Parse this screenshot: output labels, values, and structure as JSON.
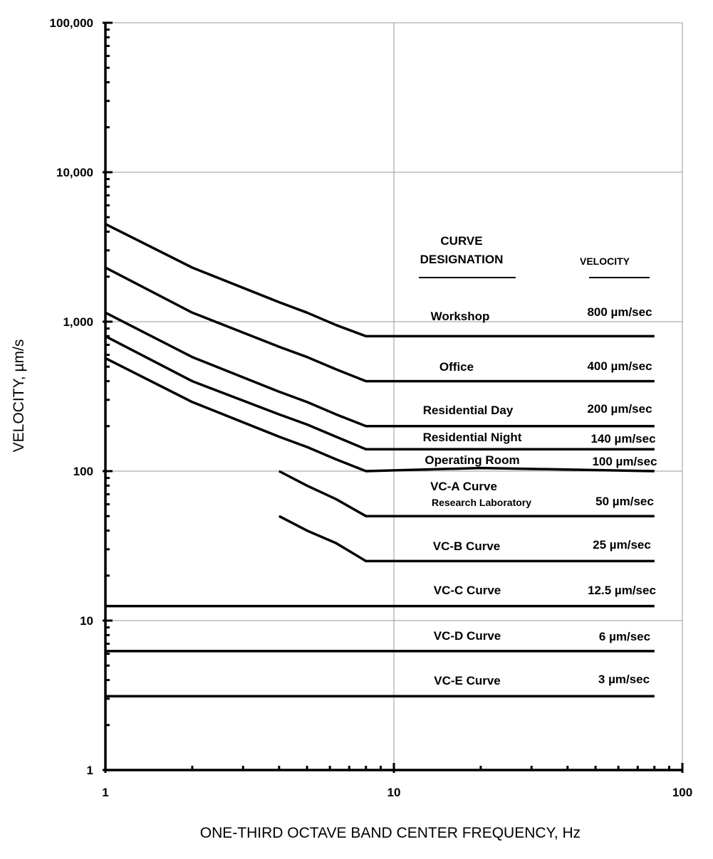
{
  "chart_data": {
    "type": "line",
    "title": "",
    "xlabel": "ONE-THIRD OCTAVE BAND CENTER FREQUENCY, Hz",
    "ylabel": "VELOCITY, µm/s",
    "x_scale": "log",
    "y_scale": "log",
    "xlim": [
      1,
      100
    ],
    "ylim": [
      1,
      100000
    ],
    "grid": true,
    "x_ticks": [
      "1",
      "10",
      "100"
    ],
    "y_ticks": [
      "1",
      "10",
      "100",
      "1,000",
      "10,000",
      "100,000"
    ],
    "legend_headers": {
      "designation": [
        "CURVE",
        "DESIGNATION"
      ],
      "velocity": "VELOCITY"
    },
    "series": [
      {
        "name": "Workshop",
        "velocity_label": "800 µm/sec",
        "x": [
          1,
          2,
          4,
          5,
          6.3,
          8,
          80
        ],
        "y": [
          4500,
          2300,
          1350,
          1150,
          950,
          800,
          800
        ]
      },
      {
        "name": "Office",
        "velocity_label": "400 µm/sec",
        "x": [
          1,
          2,
          4,
          5,
          6.3,
          8,
          80
        ],
        "y": [
          2300,
          1150,
          680,
          580,
          480,
          400,
          400
        ]
      },
      {
        "name": "Residential Day",
        "velocity_label": "200 µm/sec",
        "x": [
          1,
          2,
          4,
          5,
          6.3,
          8,
          80
        ],
        "y": [
          1150,
          580,
          340,
          290,
          240,
          200,
          200
        ]
      },
      {
        "name": "Residential Night",
        "velocity_label": "140 µm/sec",
        "x": [
          1,
          2,
          4,
          5,
          6.3,
          8,
          80
        ],
        "y": [
          800,
          400,
          240,
          205,
          170,
          140,
          140
        ]
      },
      {
        "name": "Operating Room",
        "velocity_label": "100 µm/sec",
        "x": [
          1,
          2,
          4,
          5,
          6.3,
          8,
          20,
          80
        ],
        "y": [
          570,
          290,
          170,
          145,
          120,
          100,
          105,
          100
        ]
      },
      {
        "name": "VC-A Curve",
        "sublabel": "Research Laboratory",
        "velocity_label": "50 µm/sec",
        "x": [
          4,
          5,
          6.3,
          8,
          80
        ],
        "y": [
          100,
          80,
          65,
          50,
          50
        ]
      },
      {
        "name": "VC-B Curve",
        "velocity_label": "25 µm/sec",
        "x": [
          4,
          5,
          6.3,
          8,
          80
        ],
        "y": [
          50,
          40,
          33,
          25,
          25
        ]
      },
      {
        "name": "VC-C Curve",
        "velocity_label": "12.5 µm/sec",
        "x": [
          1,
          80
        ],
        "y": [
          12.5,
          12.5
        ]
      },
      {
        "name": "VC-D Curve",
        "velocity_label": "6 µm/sec",
        "x": [
          1,
          80
        ],
        "y": [
          6.25,
          6.25
        ]
      },
      {
        "name": "VC-E Curve",
        "velocity_label": "3 µm/sec",
        "x": [
          1,
          80
        ],
        "y": [
          3.12,
          3.12
        ]
      }
    ]
  }
}
